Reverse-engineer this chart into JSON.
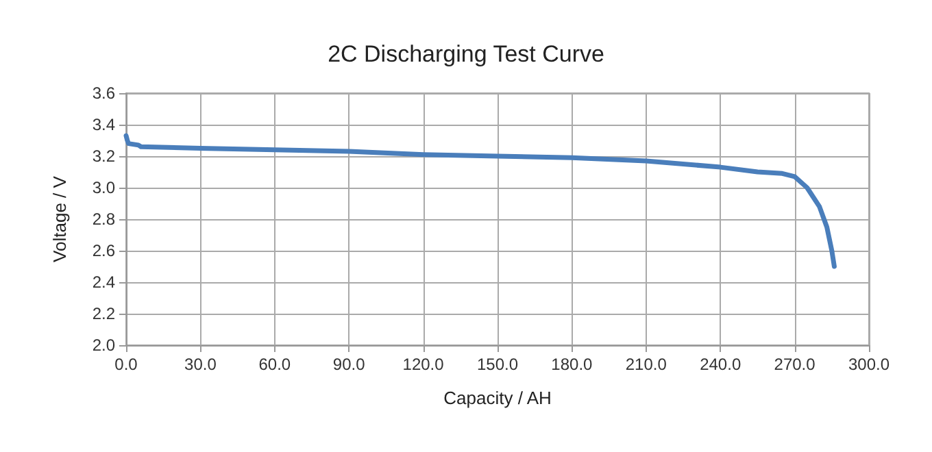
{
  "chart_data": {
    "type": "line",
    "title": "2C Discharging Test Curve",
    "xlabel": "Capacity / AH",
    "ylabel": "Voltage / V",
    "xlim": [
      0,
      300
    ],
    "ylim": [
      2.0,
      3.6
    ],
    "xticks": [
      {
        "value": 0,
        "label": "0.0"
      },
      {
        "value": 30,
        "label": "30.0"
      },
      {
        "value": 60,
        "label": "60.0"
      },
      {
        "value": 90,
        "label": "90.0"
      },
      {
        "value": 120,
        "label": "120.0"
      },
      {
        "value": 150,
        "label": "150.0"
      },
      {
        "value": 180,
        "label": "180.0"
      },
      {
        "value": 210,
        "label": "210.0"
      },
      {
        "value": 240,
        "label": "240.0"
      },
      {
        "value": 270,
        "label": "270.0"
      },
      {
        "value": 300,
        "label": "300.0"
      }
    ],
    "yticks": [
      {
        "value": 2.0,
        "label": "2.0"
      },
      {
        "value": 2.2,
        "label": "2.2"
      },
      {
        "value": 2.4,
        "label": "2.4"
      },
      {
        "value": 2.6,
        "label": "2.6"
      },
      {
        "value": 2.8,
        "label": "2.8"
      },
      {
        "value": 3.0,
        "label": "3.0"
      },
      {
        "value": 3.2,
        "label": "3.2"
      },
      {
        "value": 3.4,
        "label": "3.4"
      },
      {
        "value": 3.6,
        "label": "3.6"
      }
    ],
    "grid": true,
    "marker": "none",
    "line_style": "solid",
    "series": [
      {
        "color": "#4a7ebb",
        "x": [
          0,
          0.5,
          1,
          5,
          6,
          30,
          60,
          90,
          120,
          150,
          180,
          210,
          240,
          255,
          265,
          270,
          275,
          280,
          283,
          285,
          286
        ],
        "values": [
          3.33,
          3.3,
          3.28,
          3.27,
          3.26,
          3.25,
          3.24,
          3.23,
          3.21,
          3.2,
          3.19,
          3.17,
          3.13,
          3.1,
          3.09,
          3.07,
          3.0,
          2.88,
          2.75,
          2.6,
          2.5
        ]
      }
    ]
  }
}
